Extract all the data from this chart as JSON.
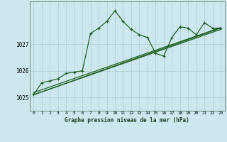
{
  "title": "Graphe pression niveau de la mer (hPa)",
  "bg_color": "#cce8ee",
  "grid_color": "#aacccc",
  "line_color": "#1a5c1a",
  "x_min": -0.5,
  "x_max": 23.5,
  "y_min": 1024.5,
  "y_max": 1028.6,
  "yticks": [
    1025,
    1026,
    1027
  ],
  "xticks": [
    0,
    1,
    2,
    3,
    4,
    5,
    6,
    7,
    8,
    9,
    10,
    11,
    12,
    13,
    14,
    15,
    16,
    17,
    18,
    19,
    20,
    21,
    22,
    23
  ],
  "series_main": [
    [
      0,
      1025.1
    ],
    [
      1,
      1025.55
    ],
    [
      2,
      1025.62
    ],
    [
      3,
      1025.7
    ],
    [
      4,
      1025.9
    ],
    [
      5,
      1025.95
    ],
    [
      6,
      1026.0
    ],
    [
      7,
      1027.4
    ],
    [
      8,
      1027.6
    ],
    [
      9,
      1027.85
    ],
    [
      10,
      1028.25
    ],
    [
      11,
      1027.85
    ],
    [
      12,
      1027.55
    ],
    [
      13,
      1027.35
    ],
    [
      14,
      1027.25
    ],
    [
      15,
      1026.65
    ],
    [
      16,
      1026.55
    ],
    [
      17,
      1027.25
    ],
    [
      18,
      1027.65
    ],
    [
      19,
      1027.6
    ],
    [
      20,
      1027.35
    ],
    [
      21,
      1027.8
    ],
    [
      22,
      1027.6
    ],
    [
      23,
      1027.6
    ]
  ],
  "series_line1": [
    [
      0,
      1025.1
    ],
    [
      23,
      1027.6
    ]
  ],
  "series_line2": [
    [
      0,
      1025.1
    ],
    [
      23,
      1027.55
    ]
  ],
  "series_line3": [
    [
      0,
      1025.18
    ],
    [
      23,
      1027.62
    ]
  ]
}
